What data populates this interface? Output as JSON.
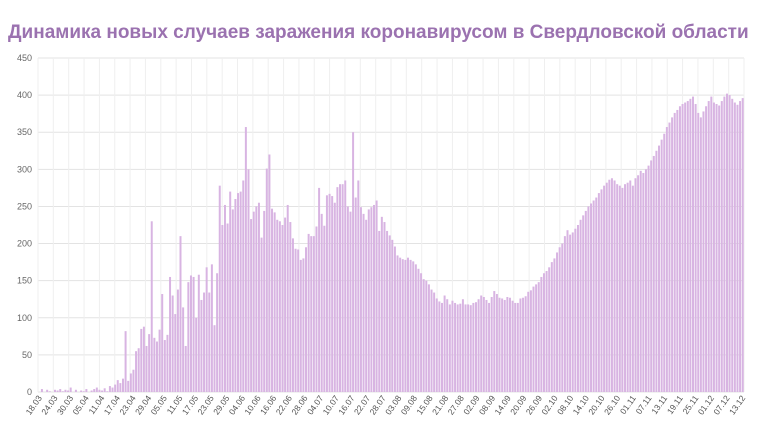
{
  "chart_data": {
    "type": "bar",
    "title": "Динамика новых случаев заражения коронавирусом в Свердловской области",
    "xlabel": "",
    "ylabel": "",
    "ylim": [
      0,
      450
    ],
    "yticks": [
      0,
      50,
      100,
      150,
      200,
      250,
      300,
      350,
      400,
      450
    ],
    "grid": true,
    "legend": "none",
    "bar_color": "#d8b4e2",
    "title_color": "#9b72b0",
    "x_tick_labels": [
      "18.03",
      "24.03",
      "30.03",
      "05.04",
      "11.04",
      "17.04",
      "23.04",
      "29.04",
      "05.05",
      "11.05",
      "17.05",
      "23.05",
      "29.05",
      "04.06",
      "10.06",
      "16.06",
      "22.06",
      "28.06",
      "04.07",
      "10.07",
      "16.07",
      "22.07",
      "28.07",
      "03.08",
      "09.08",
      "15.08",
      "21.08",
      "27.08",
      "02.09",
      "08.09",
      "14.09",
      "20.09",
      "26.09",
      "02.10",
      "08.10",
      "14.10",
      "20.10",
      "26.10",
      "01.11",
      "07.11",
      "13.11",
      "19.11",
      "25.11",
      "01.12",
      "07.12",
      "13.12"
    ],
    "values": [
      0,
      4,
      0,
      3,
      1,
      0,
      3,
      2,
      4,
      1,
      3,
      2,
      6,
      0,
      3,
      0,
      2,
      1,
      4,
      0,
      2,
      4,
      6,
      3,
      2,
      5,
      1,
      8,
      6,
      10,
      16,
      12,
      18,
      82,
      15,
      25,
      30,
      55,
      59,
      85,
      88,
      62,
      78,
      230,
      73,
      68,
      84,
      132,
      70,
      77,
      155,
      130,
      105,
      138,
      210,
      114,
      62,
      148,
      157,
      155,
      100,
      158,
      124,
      134,
      168,
      134,
      172,
      90,
      160,
      278,
      225,
      252,
      227,
      270,
      246,
      260,
      268,
      270,
      285,
      357,
      300,
      233,
      243,
      250,
      255,
      208,
      244,
      301,
      320,
      247,
      242,
      232,
      230,
      225,
      235,
      252,
      229,
      207,
      193,
      192,
      178,
      180,
      195,
      213,
      210,
      210,
      223,
      275,
      240,
      224,
      265,
      267,
      264,
      255,
      276,
      280,
      280,
      285,
      250,
      243,
      350,
      262,
      285,
      249,
      240,
      232,
      246,
      249,
      252,
      258,
      217,
      236,
      229,
      217,
      211,
      205,
      196,
      184,
      181,
      179,
      178,
      181,
      178,
      176,
      172,
      166,
      160,
      152,
      150,
      145,
      138,
      134,
      126,
      122,
      120,
      130,
      125,
      118,
      123,
      120,
      118,
      119,
      125,
      118,
      118,
      117,
      120,
      121,
      125,
      130,
      128,
      124,
      120,
      128,
      136,
      132,
      127,
      126,
      124,
      128,
      127,
      123,
      120,
      120,
      126,
      127,
      129,
      135,
      137,
      142,
      145,
      148,
      155,
      160,
      163,
      168,
      175,
      180,
      188,
      195,
      200,
      210,
      218,
      212,
      215,
      220,
      225,
      232,
      238,
      244,
      250,
      254,
      258,
      262,
      268,
      273,
      278,
      282,
      286,
      288,
      285,
      280,
      278,
      275,
      280,
      282,
      285,
      278,
      288,
      292,
      298,
      295,
      300,
      305,
      312,
      318,
      325,
      332,
      340,
      348,
      357,
      363,
      370,
      376,
      380,
      385,
      388,
      390,
      392,
      395,
      398,
      388,
      376,
      370,
      378,
      385,
      392,
      398,
      390,
      388,
      386,
      392,
      398,
      402,
      400,
      395,
      390,
      387,
      392,
      396
    ]
  }
}
